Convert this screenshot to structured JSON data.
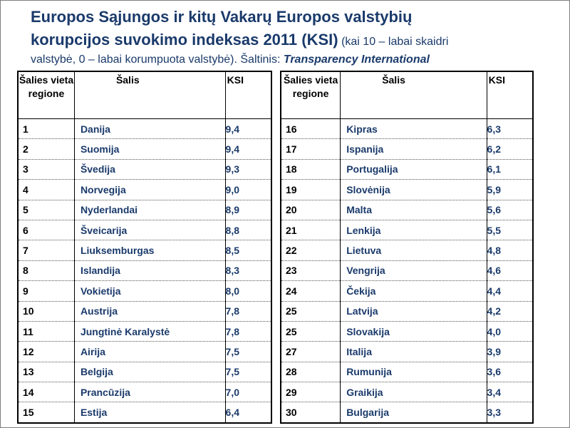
{
  "title": {
    "line1": "Europos Sąjungos ir kitų Vakarų Europos valstybių",
    "line2_bold": "korupcijos suvokimo indeksas 2011 (KSI)",
    "line2_small": " (kai 10 – labai skaidri",
    "line3_text": "valstybė, 0 – labai korumpuota valstybė). Šaltinis: ",
    "line3_source": "Transparency International"
  },
  "headers": {
    "rank": "Šalies vieta regione",
    "country": "Šalis",
    "ksi": "KSI"
  },
  "left_rows": [
    {
      "rank": "1",
      "country": "Danija",
      "ksi": "9,4"
    },
    {
      "rank": "2",
      "country": "Suomija",
      "ksi": "9,4"
    },
    {
      "rank": "3",
      "country": "Švedija",
      "ksi": "9,3"
    },
    {
      "rank": "4",
      "country": "Norvegija",
      "ksi": "9,0"
    },
    {
      "rank": "5",
      "country": "Nyderlandai",
      "ksi": "8,9"
    },
    {
      "rank": "6",
      "country": "Šveicarija",
      "ksi": "8,8"
    },
    {
      "rank": "7",
      "country": "Liuksemburgas",
      "ksi": "8,5"
    },
    {
      "rank": "8",
      "country": "Islandija",
      "ksi": "8,3"
    },
    {
      "rank": "9",
      "country": "Vokietija",
      "ksi": "8,0"
    },
    {
      "rank": "10",
      "country": "Austrija",
      "ksi": "7,8"
    },
    {
      "rank": "11",
      "country": "Jungtinė Karalystė",
      "ksi": "7,8"
    },
    {
      "rank": "12",
      "country": "Airija",
      "ksi": "7,5"
    },
    {
      "rank": "13",
      "country": "Belgija",
      "ksi": "7,5"
    },
    {
      "rank": "14",
      "country": "Prancūzija",
      "ksi": "7,0"
    },
    {
      "rank": "15",
      "country": "Estija",
      "ksi": "6,4"
    }
  ],
  "right_rows": [
    {
      "rank": "16",
      "country": "Kipras",
      "ksi": "6,3"
    },
    {
      "rank": "17",
      "country": "Ispanija",
      "ksi": "6,2"
    },
    {
      "rank": "18",
      "country": "Portugalija",
      "ksi": "6,1"
    },
    {
      "rank": "19",
      "country": "Slovėnija",
      "ksi": "5,9"
    },
    {
      "rank": "20",
      "country": "Malta",
      "ksi": "5,6"
    },
    {
      "rank": "21",
      "country": "Lenkija",
      "ksi": "5,5"
    },
    {
      "rank": "22",
      "country": "Lietuva",
      "ksi": "4,8"
    },
    {
      "rank": "23",
      "country": "Vengrija",
      "ksi": "4,6"
    },
    {
      "rank": "24",
      "country": "Čekija",
      "ksi": "4,4"
    },
    {
      "rank": "25",
      "country": "Latvija",
      "ksi": "4,2"
    },
    {
      "rank": "25",
      "country": "Slovakija",
      "ksi": "4,0"
    },
    {
      "rank": "27",
      "country": "Italija",
      "ksi": "3,9"
    },
    {
      "rank": "28",
      "country": "Rumunija",
      "ksi": "3,6"
    },
    {
      "rank": "29",
      "country": "Graikija",
      "ksi": "3,4"
    },
    {
      "rank": "30",
      "country": "Bulgarija",
      "ksi": "3,3"
    }
  ]
}
